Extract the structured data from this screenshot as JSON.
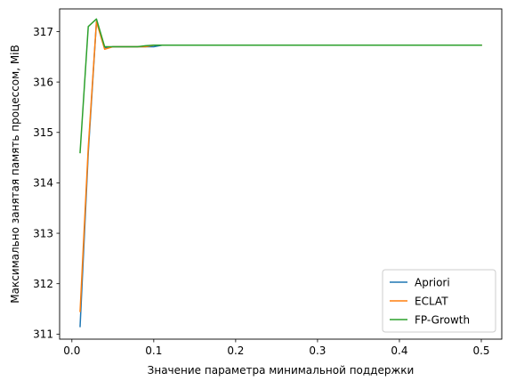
{
  "chart_data": {
    "type": "line",
    "xlabel": "Значение параметра минимальной поддержки",
    "ylabel": "Максимально занятая память процессом, MiB",
    "xlim": [
      -0.015,
      0.525
    ],
    "ylim": [
      310.9,
      317.45
    ],
    "xticks": [
      0.0,
      0.1,
      0.2,
      0.3,
      0.4,
      0.5
    ],
    "xtick_labels": [
      "0.0",
      "0.1",
      "0.2",
      "0.3",
      "0.4",
      "0.5"
    ],
    "yticks": [
      311,
      312,
      313,
      314,
      315,
      316,
      317
    ],
    "ytick_labels": [
      "311",
      "312",
      "313",
      "314",
      "315",
      "316",
      "317"
    ],
    "grid": false,
    "legend_position": "bottom-right",
    "series": [
      {
        "name": "Apriori",
        "color": "#1f77b4",
        "x": [
          0.01,
          0.02,
          0.03,
          0.04,
          0.05,
          0.06,
          0.07,
          0.08,
          0.09,
          0.1,
          0.11,
          0.5
        ],
        "y": [
          311.15,
          314.6,
          317.2,
          316.68,
          316.7,
          316.7,
          316.7,
          316.7,
          316.7,
          316.7,
          316.73,
          316.73
        ]
      },
      {
        "name": "ECLAT",
        "color": "#ff7f0e",
        "x": [
          0.01,
          0.02,
          0.03,
          0.04,
          0.05,
          0.06,
          0.07,
          0.08,
          0.09,
          0.1,
          0.11,
          0.5
        ],
        "y": [
          311.45,
          314.7,
          317.2,
          316.65,
          316.7,
          316.7,
          316.7,
          316.7,
          316.7,
          316.73,
          316.73,
          316.73
        ]
      },
      {
        "name": "FP-Growth",
        "color": "#2ca02c",
        "x": [
          0.01,
          0.02,
          0.03,
          0.04,
          0.05,
          0.06,
          0.07,
          0.08,
          0.09,
          0.1,
          0.11,
          0.5
        ],
        "y": [
          314.6,
          317.1,
          317.25,
          316.7,
          316.7,
          316.7,
          316.7,
          316.7,
          316.72,
          316.73,
          316.73,
          316.73
        ]
      }
    ]
  }
}
